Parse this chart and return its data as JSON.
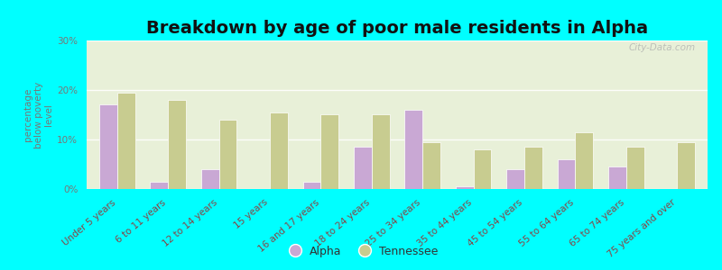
{
  "title": "Breakdown by age of poor male residents in Alpha",
  "ylabel": "percentage\nbelow poverty\nlevel",
  "categories": [
    "Under 5 years",
    "6 to 11 years",
    "12 to 14 years",
    "15 years",
    "16 and 17 years",
    "18 to 24 years",
    "25 to 34 years",
    "35 to 44 years",
    "45 to 54 years",
    "55 to 64 years",
    "65 to 74 years",
    "75 years and over"
  ],
  "alpha_values": [
    17,
    1.5,
    4,
    0,
    1.5,
    8.5,
    16,
    0.5,
    4,
    6,
    4.5,
    0
  ],
  "tennessee_values": [
    19.5,
    18,
    14,
    15.5,
    15,
    15,
    9.5,
    8,
    8.5,
    11.5,
    8.5,
    9.5
  ],
  "alpha_color": "#c9a8d4",
  "tennessee_color": "#c8cc90",
  "background_color": "#00ffff",
  "plot_bg": "#e8f0d8",
  "bar_edge_color": "#ffffff",
  "ytick_labels": [
    "0%",
    "10%",
    "20%",
    "30%"
  ],
  "ytick_values": [
    0,
    10,
    20,
    30
  ],
  "ylim": [
    0,
    30
  ],
  "title_fontsize": 14,
  "axis_label_fontsize": 7.5,
  "tick_fontsize": 7.5,
  "legend_fontsize": 9,
  "watermark": "City-Data.com"
}
